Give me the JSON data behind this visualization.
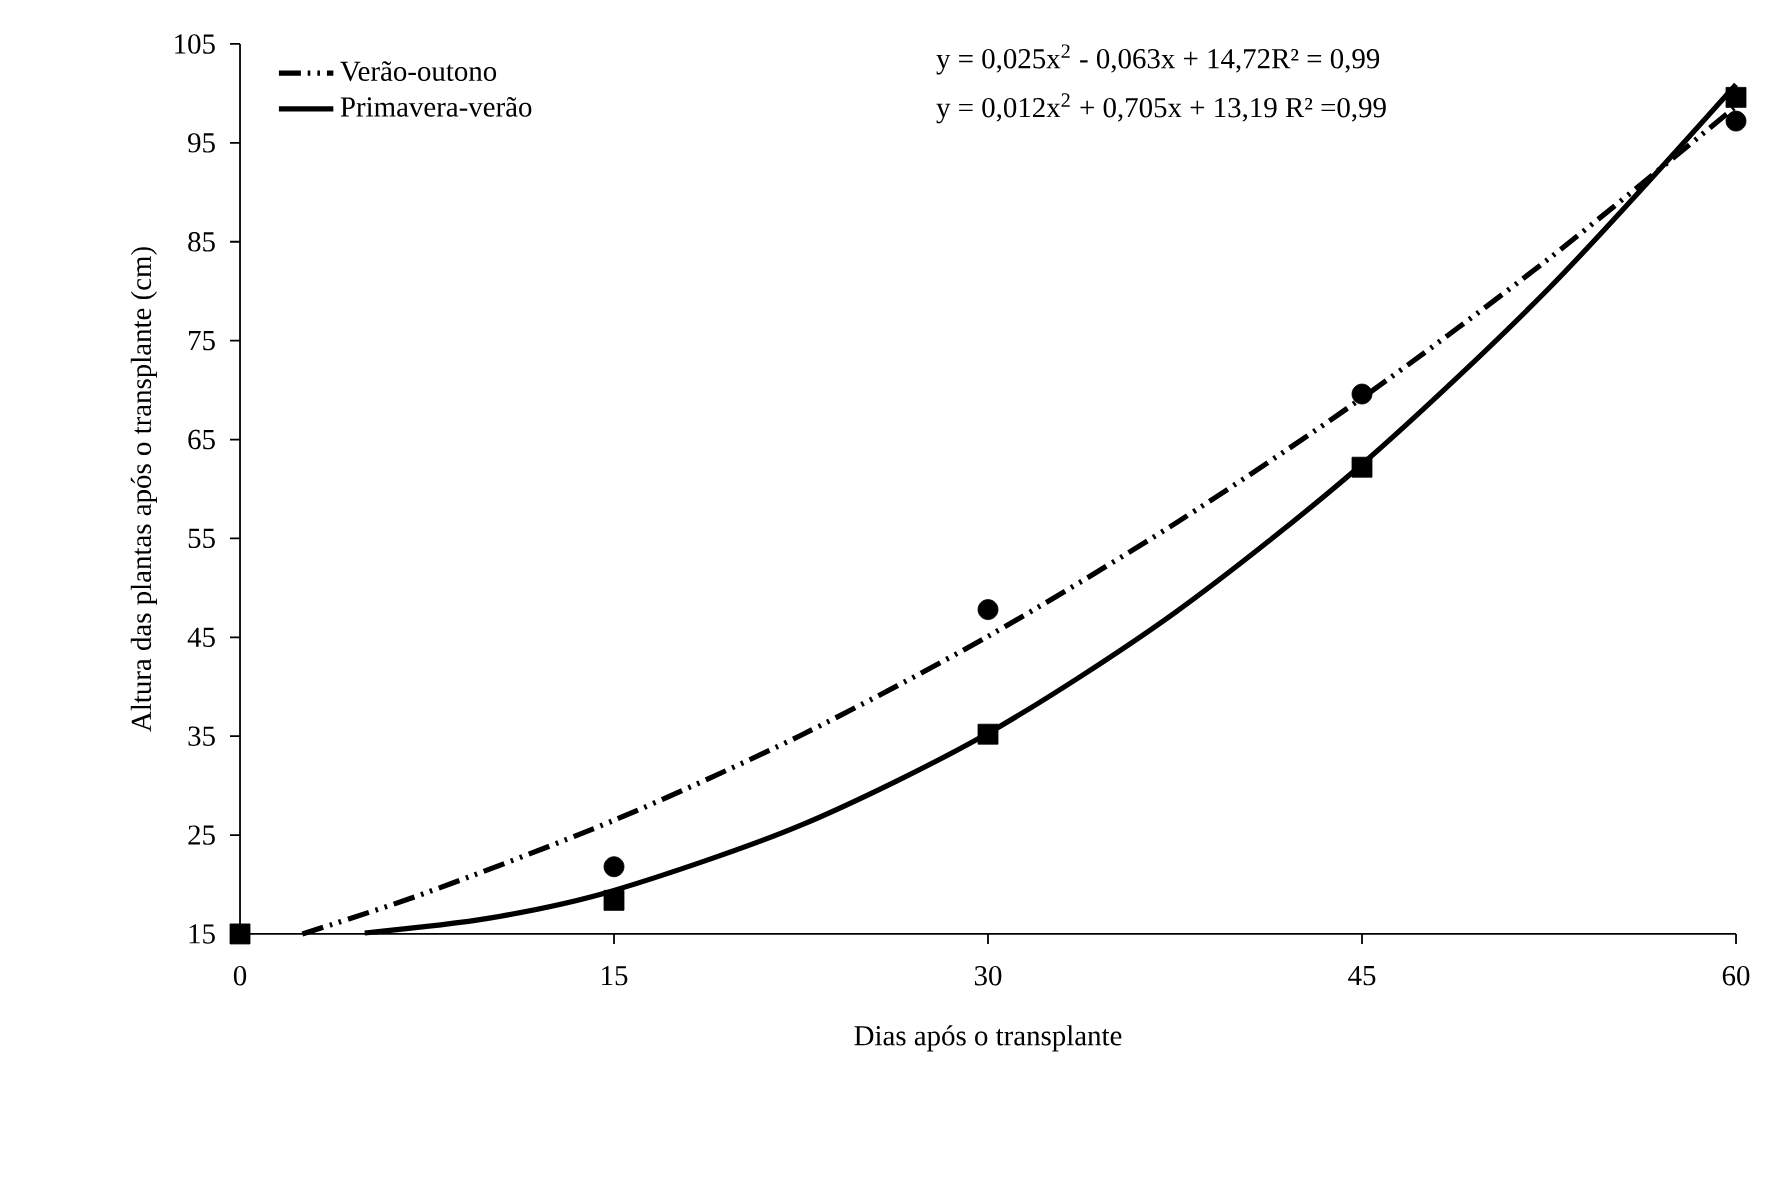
{
  "chart_data": {
    "type": "scatter",
    "xlabel": "Dias após o transplante",
    "ylabel": "Altura das plantas após o transplante (cm)",
    "xlim": [
      0,
      60
    ],
    "xticks": [
      0,
      15,
      30,
      45,
      60
    ],
    "ylim": [
      15,
      105
    ],
    "yticks": [
      15,
      25,
      35,
      45,
      55,
      65,
      75,
      85,
      95,
      105
    ],
    "grid": false,
    "legend": "top left",
    "annotations": [
      "y = 0,025x$^{2}$ - 0,063x + 14,72R² = 0,99",
      "y = 0,012x$^{2}$ + 0,705x + 13,19 R² =0,99"
    ],
    "series": [
      {
        "marker": "circle",
        "color": "#000000",
        "x": [
          15,
          30,
          45,
          60
        ],
        "values": [
          21.8,
          47.8,
          69.6,
          97.2
        ]
      },
      {
        "marker": "square",
        "color": "#000000",
        "x": [
          0,
          15,
          30,
          45,
          60
        ],
        "values": [
          15,
          18.4,
          35.2,
          62.2,
          99.6
        ]
      },
      {
        "type": "line",
        "name": "Verão-outono",
        "line_style": "dashed",
        "marker": "none",
        "color": "#000000",
        "x": [
          2.5,
          7.5,
          15,
          22.5,
          30,
          37.5,
          45,
          52.5,
          60
        ],
        "values": [
          15,
          19.2,
          26.5,
          35.1,
          45.1,
          56.5,
          69.2,
          83.3,
          98.7
        ]
      },
      {
        "type": "line",
        "name": "Primavera-verão",
        "line_style": "solid",
        "marker": "none",
        "color": "#000000",
        "x": [
          5,
          10,
          15,
          22.5,
          30,
          37.5,
          45,
          52.5,
          60
        ],
        "values": [
          15.1,
          16.6,
          19.4,
          26,
          35.3,
          47.5,
          62.5,
          80.3,
          100.9
        ]
      }
    ]
  }
}
